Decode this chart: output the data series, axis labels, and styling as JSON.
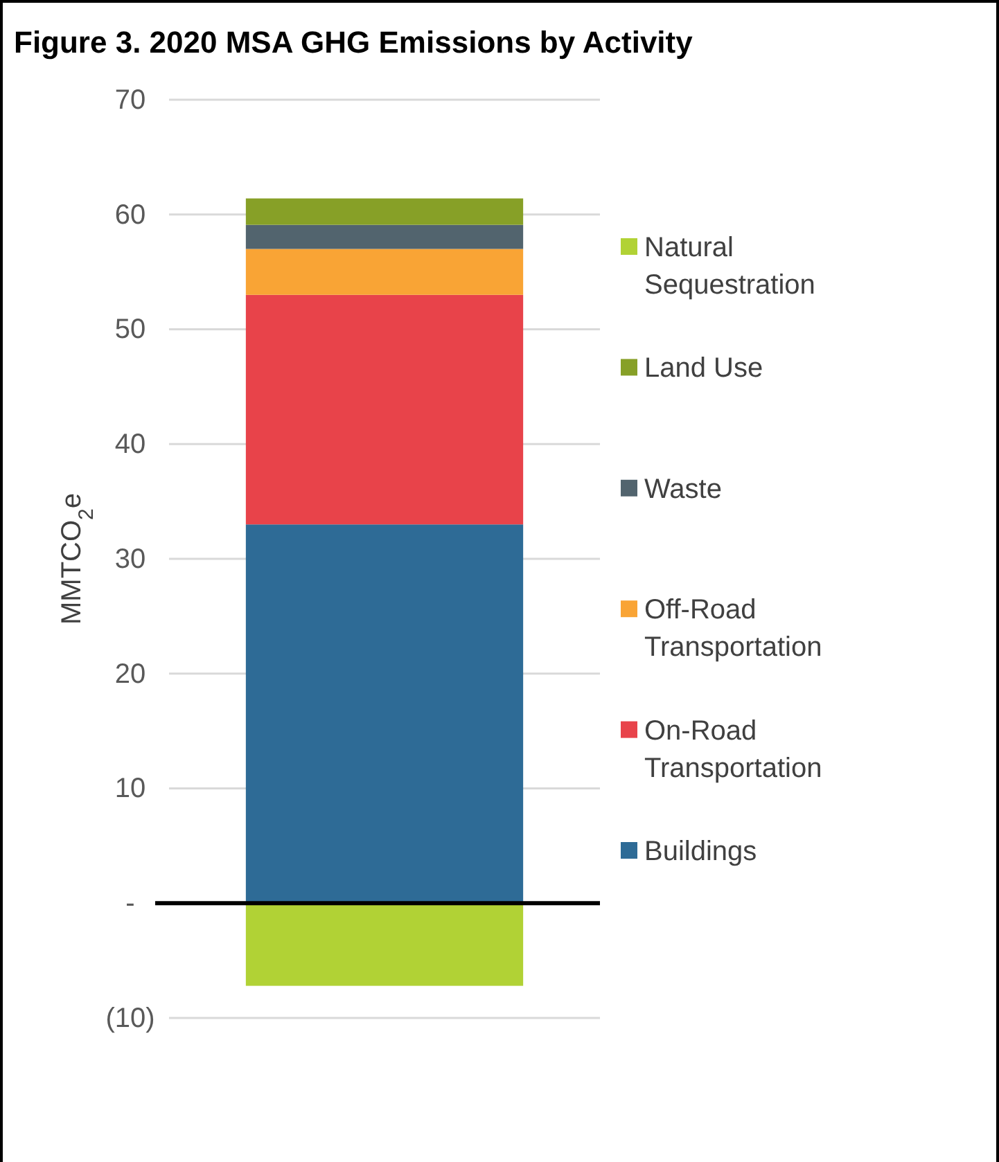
{
  "chart_data": {
    "type": "bar",
    "title": "Figure 3. 2020 MSA GHG Emissions by Activity",
    "ylabel": "MMTCO$_{2}$e",
    "categories": [
      null
    ],
    "stacked": true,
    "series": [
      {
        "name": "Buildings",
        "color": "#2e6b96",
        "values": [
          33.0
        ]
      },
      {
        "name": "On-Road Transportation",
        "color": "#e8434a",
        "values": [
          20.0
        ]
      },
      {
        "name": "Off-Road Transportation",
        "color": "#f9a435",
        "values": [
          4.0
        ]
      },
      {
        "name": "Waste",
        "color": "#52646e",
        "values": [
          2.1
        ]
      },
      {
        "name": "Land Use",
        "color": "#87a027",
        "values": [
          2.3
        ]
      },
      {
        "name": "Natural Sequestration",
        "color": "#b1d235",
        "values": [
          -7.2
        ]
      }
    ],
    "ylim": [
      -10,
      70
    ],
    "yticks": [
      {
        "value": -10,
        "label": "(10)"
      },
      {
        "value": 0,
        "label": "-"
      },
      10,
      20,
      30,
      40,
      50,
      60,
      70
    ],
    "grid": "y",
    "legend": "right",
    "tick_labels": "y"
  }
}
